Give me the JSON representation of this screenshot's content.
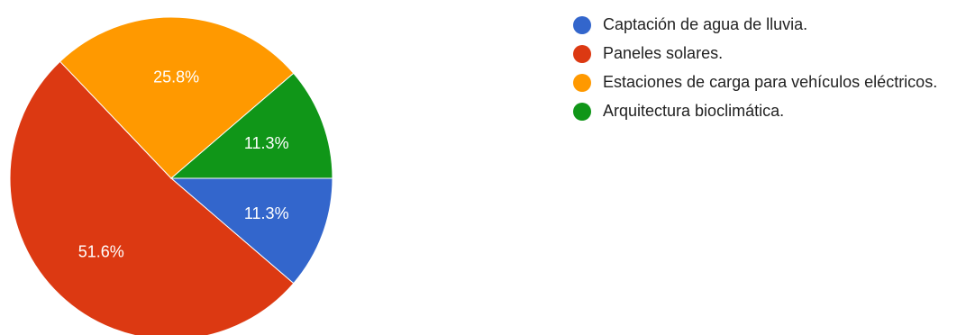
{
  "chart_data": {
    "type": "pie",
    "title": "",
    "legend_position": "right",
    "slices": [
      {
        "label": "Captación de agua de lluvia.",
        "value": 11.3,
        "value_label": "11.3%",
        "color": "#3366cc"
      },
      {
        "label": "Paneles solares.",
        "value": 51.6,
        "value_label": "51.6%",
        "color": "#dc3912"
      },
      {
        "label": "Estaciones de carga para vehículos eléctricos.",
        "value": 25.8,
        "value_label": "25.8%",
        "color": "#ff9900"
      },
      {
        "label": "Arquitectura bioclimática.",
        "value": 11.3,
        "value_label": "11.3%",
        "color": "#109618"
      }
    ]
  }
}
